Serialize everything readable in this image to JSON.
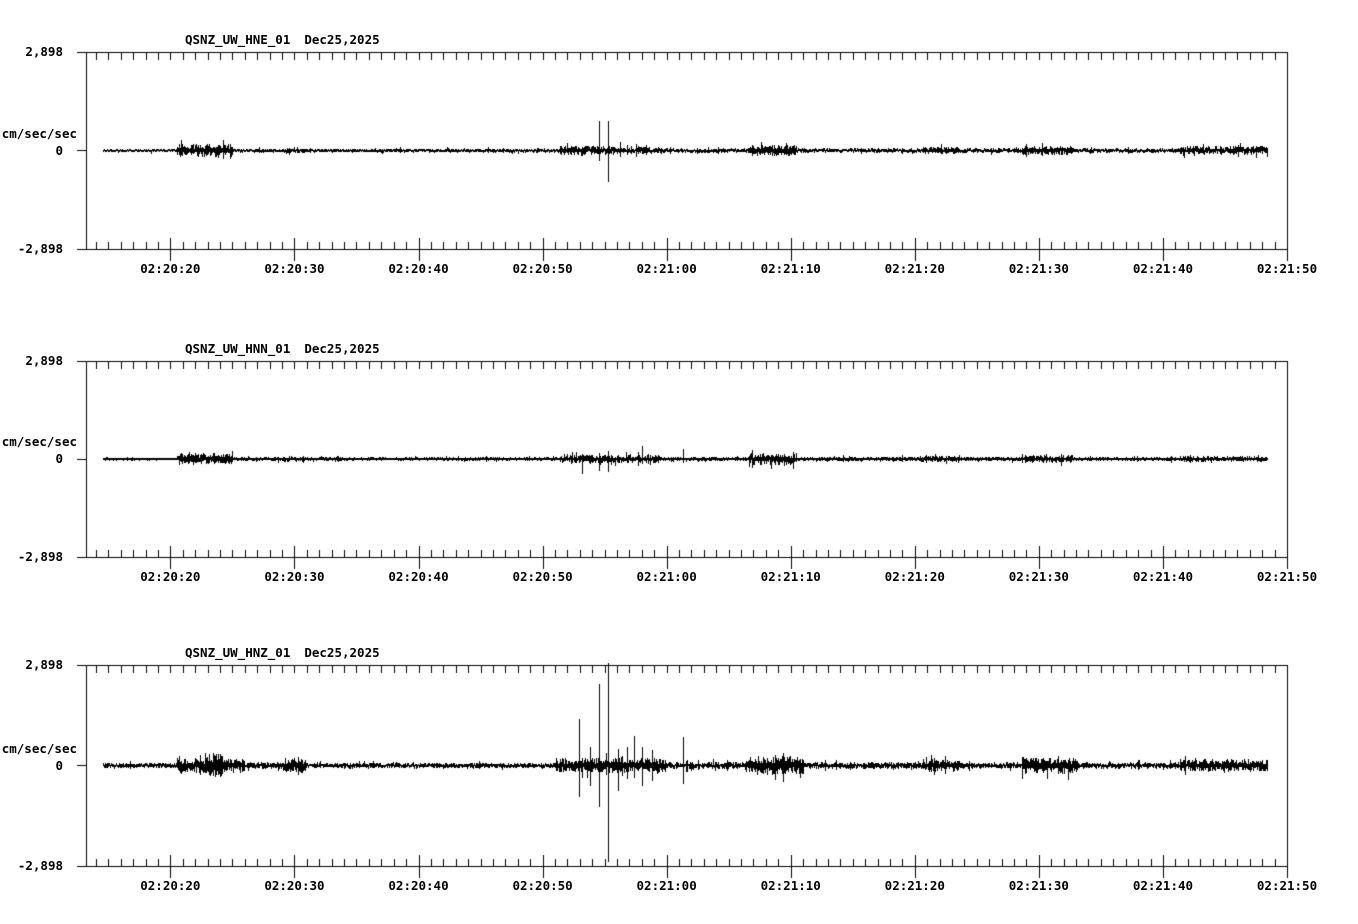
{
  "page": {
    "background": "#ffffff",
    "ink": "#000000",
    "description": "Three-channel seismic webicorder display"
  },
  "chart_data": [
    {
      "type": "line",
      "title": "QSNZ_UW_HNE_01",
      "date": "Dec25,2025",
      "ylabel": "cm/sec/sec",
      "ylim": [
        -2898,
        2898
      ],
      "yticks": [
        2898,
        0,
        -2898
      ],
      "ytick_labels": [
        "2,898",
        "0",
        "-2,898"
      ],
      "x_window_sec": [
        13.2,
        110
      ],
      "x_major_ticks_sec": [
        20,
        30,
        40,
        50,
        60,
        70,
        80,
        90,
        100,
        110
      ],
      "xtick_labels": [
        "02:20:20",
        "02:20:30",
        "02:20:40",
        "02:20:50",
        "02:21:00",
        "02:21:10",
        "02:21:20",
        "02:21:30",
        "02:21:40",
        "02:21:50"
      ],
      "x_minor_interval_sec": 1,
      "grid": false,
      "legend": false,
      "trace": {
        "baseline": 0,
        "span_sec": [
          14.6,
          108.4
        ],
        "base_amp": 45,
        "envelope": [
          [
            14.6,
            20.5,
            45
          ],
          [
            20.5,
            25.0,
            200
          ],
          [
            25.0,
            29.1,
            60
          ],
          [
            29.1,
            30.8,
            95
          ],
          [
            30.8,
            51.4,
            55
          ],
          [
            51.4,
            56.0,
            140
          ],
          [
            56.0,
            59.5,
            100
          ],
          [
            59.5,
            66.5,
            65
          ],
          [
            66.5,
            70.5,
            170
          ],
          [
            70.5,
            80.6,
            70
          ],
          [
            80.6,
            83.5,
            110
          ],
          [
            83.5,
            88.6,
            70
          ],
          [
            88.6,
            92.8,
            140
          ],
          [
            92.8,
            101.3,
            65
          ],
          [
            101.3,
            108.4,
            130
          ]
        ],
        "spikes": [
          {
            "t": 54.55,
            "up": 880,
            "down": 290
          },
          {
            "t": 55.28,
            "up": 880,
            "down": 910
          },
          {
            "t": 56.2,
            "up": 240,
            "down": 200
          },
          {
            "t": 57.5,
            "up": 200,
            "down": 180
          },
          {
            "t": 58.3,
            "up": 160,
            "down": 120
          }
        ]
      }
    },
    {
      "type": "line",
      "title": "QSNZ_UW_HNN_01",
      "date": "Dec25,2025",
      "ylabel": "cm/sec/sec",
      "ylim": [
        -2898,
        2898
      ],
      "yticks": [
        2898,
        0,
        -2898
      ],
      "ytick_labels": [
        "2,898",
        "0",
        "-2,898"
      ],
      "x_window_sec": [
        13.2,
        110
      ],
      "x_major_ticks_sec": [
        20,
        30,
        40,
        50,
        60,
        70,
        80,
        90,
        100,
        110
      ],
      "xtick_labels": [
        "02:20:20",
        "02:20:30",
        "02:20:40",
        "02:20:50",
        "02:21:00",
        "02:21:10",
        "02:21:20",
        "02:21:30",
        "02:21:40",
        "02:21:50"
      ],
      "x_minor_interval_sec": 1,
      "grid": false,
      "legend": false,
      "trace": {
        "baseline": 0,
        "span_sec": [
          14.6,
          108.4
        ],
        "base_amp": 45,
        "envelope": [
          [
            14.6,
            20.5,
            45
          ],
          [
            20.5,
            25.0,
            170
          ],
          [
            25.0,
            29.1,
            60
          ],
          [
            29.1,
            30.8,
            90
          ],
          [
            30.8,
            51.4,
            55
          ],
          [
            51.4,
            59.5,
            130
          ],
          [
            59.5,
            66.5,
            60
          ],
          [
            66.5,
            70.5,
            180
          ],
          [
            70.5,
            80.6,
            70
          ],
          [
            80.6,
            83.5,
            100
          ],
          [
            83.5,
            88.6,
            65
          ],
          [
            88.6,
            92.8,
            120
          ],
          [
            92.8,
            101.3,
            60
          ],
          [
            101.3,
            108.4,
            85
          ]
        ],
        "spikes": [
          {
            "t": 53.15,
            "up": 150,
            "down": 440
          },
          {
            "t": 54.55,
            "up": 180,
            "down": 350
          },
          {
            "t": 55.28,
            "up": 240,
            "down": 380
          },
          {
            "t": 58.05,
            "up": 380,
            "down": 150
          },
          {
            "t": 61.3,
            "up": 290,
            "down": 120
          }
        ]
      }
    },
    {
      "type": "line",
      "title": "QSNZ_UW_HNZ_01",
      "date": "Dec25,2025",
      "ylabel": "cm/sec/sec",
      "ylim": [
        -2898,
        2898
      ],
      "yticks": [
        2898,
        0,
        -2898
      ],
      "ytick_labels": [
        "2,898",
        "0",
        "-2,898"
      ],
      "x_window_sec": [
        13.2,
        110
      ],
      "x_major_ticks_sec": [
        20,
        30,
        40,
        50,
        60,
        70,
        80,
        90,
        100,
        110
      ],
      "xtick_labels": [
        "02:20:20",
        "02:20:30",
        "02:20:40",
        "02:20:50",
        "02:21:00",
        "02:21:10",
        "02:21:20",
        "02:21:30",
        "02:21:40",
        "02:21:50"
      ],
      "x_minor_interval_sec": 1,
      "grid": false,
      "legend": false,
      "trace": {
        "baseline": 0,
        "span_sec": [
          14.6,
          108.4
        ],
        "base_amp": 70,
        "envelope": [
          [
            14.6,
            20.5,
            80
          ],
          [
            20.5,
            22.8,
            240
          ],
          [
            22.8,
            24.2,
            360
          ],
          [
            24.2,
            26.0,
            200
          ],
          [
            26.0,
            29.1,
            100
          ],
          [
            29.1,
            30.9,
            220
          ],
          [
            30.9,
            51.0,
            80
          ],
          [
            51.0,
            60.0,
            220
          ],
          [
            60.0,
            66.5,
            110
          ],
          [
            66.5,
            71.0,
            280
          ],
          [
            71.0,
            80.6,
            100
          ],
          [
            80.6,
            83.6,
            180
          ],
          [
            83.6,
            88.6,
            90
          ],
          [
            88.6,
            93.0,
            240
          ],
          [
            93.0,
            101.3,
            90
          ],
          [
            101.3,
            108.4,
            180
          ]
        ],
        "spikes": [
          {
            "t": 52.9,
            "up": 1350,
            "down": 900
          },
          {
            "t": 53.8,
            "up": 530,
            "down": 600
          },
          {
            "t": 54.55,
            "up": 2350,
            "down": 1200
          },
          {
            "t": 55.28,
            "up": 2950,
            "down": 2800
          },
          {
            "t": 56.1,
            "up": 470,
            "down": 740
          },
          {
            "t": 56.8,
            "up": 530,
            "down": 380
          },
          {
            "t": 57.4,
            "up": 850,
            "down": 350
          },
          {
            "t": 58.05,
            "up": 530,
            "down": 600
          },
          {
            "t": 58.8,
            "up": 440,
            "down": 440
          },
          {
            "t": 61.3,
            "up": 820,
            "down": 530
          },
          {
            "t": 69.4,
            "up": 350,
            "down": 500
          }
        ]
      }
    }
  ]
}
